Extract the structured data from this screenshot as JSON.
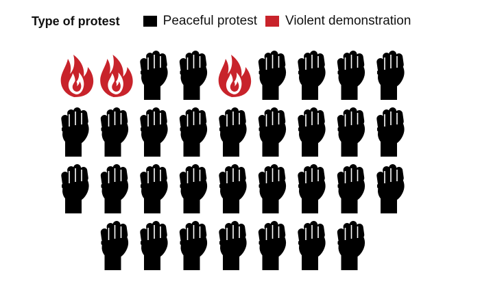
{
  "chart_data": {
    "type": "pictogram",
    "legend_title": "Type of protest",
    "legend_placement": "top-left",
    "series": [
      {
        "name": "Peaceful protest",
        "color": "#000000",
        "icon": "raised-fist-icon"
      },
      {
        "name": "Violent demonstration",
        "color": "#c8232b",
        "icon": "flame-icon"
      }
    ],
    "counts": {
      "Peaceful protest": 31,
      "Violent demonstration": 3
    },
    "rows": [
      [
        "Violent demonstration",
        "Violent demonstration",
        "Peaceful protest",
        "Peaceful protest",
        "Violent demonstration",
        "Peaceful protest",
        "Peaceful protest",
        "Peaceful protest",
        "Peaceful protest"
      ],
      [
        "Peaceful protest",
        "Peaceful protest",
        "Peaceful protest",
        "Peaceful protest",
        "Peaceful protest",
        "Peaceful protest",
        "Peaceful protest",
        "Peaceful protest",
        "Peaceful protest"
      ],
      [
        "Peaceful protest",
        "Peaceful protest",
        "Peaceful protest",
        "Peaceful protest",
        "Peaceful protest",
        "Peaceful protest",
        "Peaceful protest",
        "Peaceful protest",
        "Peaceful protest"
      ],
      [
        "Peaceful protest",
        "Peaceful protest",
        "Peaceful protest",
        "Peaceful protest",
        "Peaceful protest",
        "Peaceful protest",
        "Peaceful protest"
      ]
    ]
  }
}
